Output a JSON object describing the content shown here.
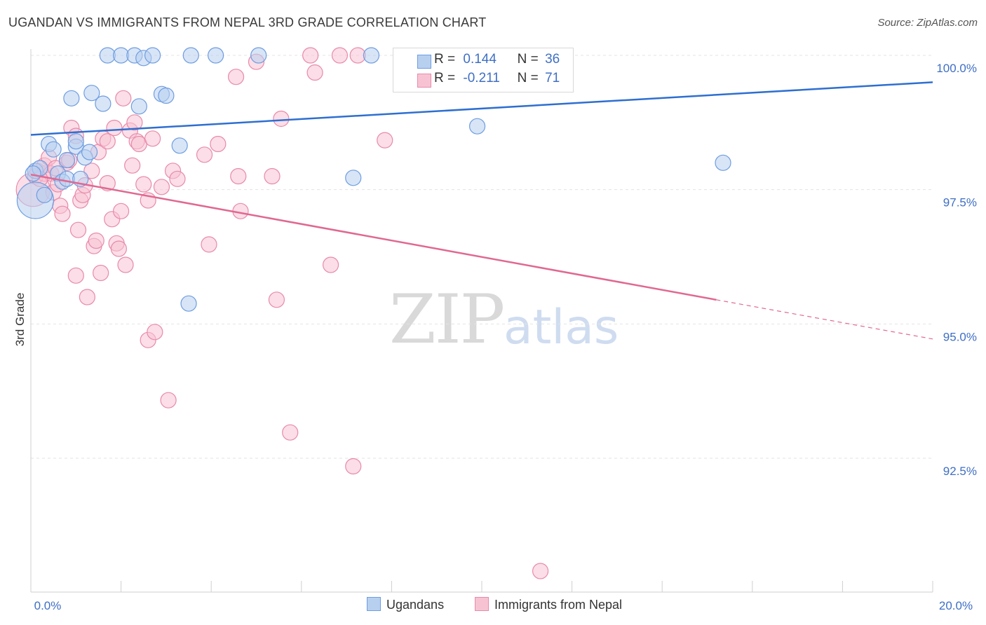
{
  "header": {
    "title": "UGANDAN VS IMMIGRANTS FROM NEPAL 3RD GRADE CORRELATION CHART",
    "source": "Source: ZipAtlas.com"
  },
  "watermark": {
    "zip": "ZIP",
    "atlas": "atlas"
  },
  "legend_box": {
    "rows": [
      {
        "r_label": "R =",
        "r_value": "0.144",
        "n_label": "N =",
        "n_value": "36"
      },
      {
        "r_label": "R =",
        "r_value": "-0.211",
        "n_label": "N =",
        "n_value": "71"
      }
    ]
  },
  "bottom_legend": {
    "series1": "Ugandans",
    "series2": "Immigrants from Nepal"
  },
  "colors": {
    "blue_fill": "#b8d0f0",
    "blue_stroke": "#6e9de0",
    "blue_line": "#2e6fd0",
    "pink_fill": "#f7c3d3",
    "pink_stroke": "#e88aaa",
    "pink_line": "#e06892",
    "grid": "#e3e3e3",
    "axis_text": "#3f6fc4"
  },
  "chart_data": {
    "type": "scatter",
    "title": "UGANDAN VS IMMIGRANTS FROM NEPAL 3RD GRADE CORRELATION CHART",
    "xlabel": "",
    "ylabel": "3rd Grade",
    "xlim": [
      0,
      20
    ],
    "ylim": [
      90.0,
      100.2
    ],
    "x_tick_labels": [
      "0.0%",
      "20.0%"
    ],
    "y_ticks": [
      100.0,
      97.5,
      95.0,
      92.5
    ],
    "y_tick_labels": [
      "100.0%",
      "97.5%",
      "95.0%",
      "92.5%"
    ],
    "grid": true,
    "legend_position": "top-center",
    "series": [
      {
        "name": "Ugandans",
        "r": 0.144,
        "n": 36,
        "trend": {
          "x": [
            0,
            20
          ],
          "y": [
            98.52,
            99.5
          ]
        },
        "points": [
          {
            "x": 0.1,
            "y": 97.3,
            "s": 26
          },
          {
            "x": 0.1,
            "y": 97.85,
            "s": 11
          },
          {
            "x": 0.2,
            "y": 97.9,
            "s": 11
          },
          {
            "x": 0.3,
            "y": 97.4,
            "s": 11
          },
          {
            "x": 0.4,
            "y": 98.35,
            "s": 11
          },
          {
            "x": 0.5,
            "y": 98.25,
            "s": 11
          },
          {
            "x": 0.6,
            "y": 97.8,
            "s": 11
          },
          {
            "x": 0.7,
            "y": 97.65,
            "s": 11
          },
          {
            "x": 0.8,
            "y": 97.7,
            "s": 11
          },
          {
            "x": 0.8,
            "y": 98.05,
            "s": 11
          },
          {
            "x": 0.9,
            "y": 99.2,
            "s": 11
          },
          {
            "x": 1.0,
            "y": 98.3,
            "s": 11
          },
          {
            "x": 1.0,
            "y": 98.4,
            "s": 11
          },
          {
            "x": 1.1,
            "y": 97.7,
            "s": 11
          },
          {
            "x": 1.2,
            "y": 98.1,
            "s": 11
          },
          {
            "x": 1.3,
            "y": 98.2,
            "s": 11
          },
          {
            "x": 1.35,
            "y": 99.3,
            "s": 11
          },
          {
            "x": 1.6,
            "y": 99.1,
            "s": 11
          },
          {
            "x": 1.7,
            "y": 100.0,
            "s": 11
          },
          {
            "x": 2.0,
            "y": 100.0,
            "s": 11
          },
          {
            "x": 2.4,
            "y": 99.05,
            "s": 11
          },
          {
            "x": 2.3,
            "y": 100.0,
            "s": 11
          },
          {
            "x": 2.5,
            "y": 99.95,
            "s": 11
          },
          {
            "x": 2.7,
            "y": 100.0,
            "s": 11
          },
          {
            "x": 2.9,
            "y": 99.28,
            "s": 11
          },
          {
            "x": 3.0,
            "y": 99.25,
            "s": 11
          },
          {
            "x": 3.3,
            "y": 98.32,
            "s": 11
          },
          {
            "x": 3.5,
            "y": 95.38,
            "s": 11
          },
          {
            "x": 3.55,
            "y": 100.0,
            "s": 11
          },
          {
            "x": 4.1,
            "y": 100.0,
            "s": 11
          },
          {
            "x": 5.05,
            "y": 100.0,
            "s": 11
          },
          {
            "x": 7.15,
            "y": 97.72,
            "s": 11
          },
          {
            "x": 7.55,
            "y": 100.0,
            "s": 11
          },
          {
            "x": 9.9,
            "y": 98.68,
            "s": 11
          },
          {
            "x": 15.35,
            "y": 98.0,
            "s": 11
          },
          {
            "x": 0.05,
            "y": 97.8,
            "s": 11
          }
        ]
      },
      {
        "name": "Immigrants from Nepal",
        "r": -0.211,
        "n": 71,
        "trend": {
          "x": [
            0,
            15.2
          ],
          "y": [
            97.78,
            95.45
          ]
        },
        "trend_dashed": {
          "x": [
            15.2,
            20
          ],
          "y": [
            95.45,
            94.72
          ]
        },
        "points": [
          {
            "x": 0.05,
            "y": 97.5,
            "s": 24
          },
          {
            "x": 0.1,
            "y": 97.75,
            "s": 11
          },
          {
            "x": 0.15,
            "y": 97.85,
            "s": 11
          },
          {
            "x": 0.3,
            "y": 97.8,
            "s": 11
          },
          {
            "x": 0.3,
            "y": 97.95,
            "s": 11
          },
          {
            "x": 0.4,
            "y": 98.1,
            "s": 11
          },
          {
            "x": 0.45,
            "y": 97.8,
            "s": 11
          },
          {
            "x": 0.5,
            "y": 97.45,
            "s": 11
          },
          {
            "x": 0.6,
            "y": 97.6,
            "s": 11
          },
          {
            "x": 0.65,
            "y": 97.2,
            "s": 11
          },
          {
            "x": 0.7,
            "y": 97.05,
            "s": 11
          },
          {
            "x": 0.8,
            "y": 98.0,
            "s": 11
          },
          {
            "x": 0.85,
            "y": 98.05,
            "s": 11
          },
          {
            "x": 0.9,
            "y": 98.65,
            "s": 11
          },
          {
            "x": 1.0,
            "y": 98.5,
            "s": 11
          },
          {
            "x": 1.0,
            "y": 95.9,
            "s": 11
          },
          {
            "x": 1.05,
            "y": 96.75,
            "s": 11
          },
          {
            "x": 1.1,
            "y": 97.3,
            "s": 11
          },
          {
            "x": 1.15,
            "y": 97.4,
            "s": 11
          },
          {
            "x": 1.2,
            "y": 97.58,
            "s": 11
          },
          {
            "x": 1.25,
            "y": 95.5,
            "s": 11
          },
          {
            "x": 1.35,
            "y": 97.85,
            "s": 11
          },
          {
            "x": 1.4,
            "y": 96.45,
            "s": 11
          },
          {
            "x": 1.45,
            "y": 96.55,
            "s": 11
          },
          {
            "x": 1.5,
            "y": 98.2,
            "s": 11
          },
          {
            "x": 1.55,
            "y": 95.95,
            "s": 11
          },
          {
            "x": 1.6,
            "y": 98.45,
            "s": 11
          },
          {
            "x": 1.7,
            "y": 98.4,
            "s": 11
          },
          {
            "x": 1.7,
            "y": 97.62,
            "s": 11
          },
          {
            "x": 1.8,
            "y": 96.95,
            "s": 11
          },
          {
            "x": 1.85,
            "y": 98.65,
            "s": 11
          },
          {
            "x": 1.9,
            "y": 96.5,
            "s": 11
          },
          {
            "x": 1.95,
            "y": 96.4,
            "s": 11
          },
          {
            "x": 2.0,
            "y": 97.1,
            "s": 11
          },
          {
            "x": 2.05,
            "y": 99.2,
            "s": 11
          },
          {
            "x": 2.1,
            "y": 96.1,
            "s": 11
          },
          {
            "x": 2.2,
            "y": 98.6,
            "s": 11
          },
          {
            "x": 2.25,
            "y": 97.95,
            "s": 11
          },
          {
            "x": 2.3,
            "y": 98.75,
            "s": 11
          },
          {
            "x": 2.35,
            "y": 98.4,
            "s": 11
          },
          {
            "x": 2.4,
            "y": 98.35,
            "s": 11
          },
          {
            "x": 2.5,
            "y": 97.6,
            "s": 11
          },
          {
            "x": 2.6,
            "y": 97.3,
            "s": 11
          },
          {
            "x": 2.6,
            "y": 94.7,
            "s": 11
          },
          {
            "x": 2.7,
            "y": 98.45,
            "s": 11
          },
          {
            "x": 2.75,
            "y": 94.85,
            "s": 11
          },
          {
            "x": 2.9,
            "y": 97.55,
            "s": 11
          },
          {
            "x": 3.05,
            "y": 93.58,
            "s": 11
          },
          {
            "x": 3.15,
            "y": 97.85,
            "s": 11
          },
          {
            "x": 3.25,
            "y": 97.7,
            "s": 11
          },
          {
            "x": 3.85,
            "y": 98.15,
            "s": 11
          },
          {
            "x": 3.95,
            "y": 96.48,
            "s": 11
          },
          {
            "x": 4.15,
            "y": 98.35,
            "s": 11
          },
          {
            "x": 4.55,
            "y": 99.6,
            "s": 11
          },
          {
            "x": 4.6,
            "y": 97.75,
            "s": 11
          },
          {
            "x": 4.65,
            "y": 97.1,
            "s": 11
          },
          {
            "x": 5.0,
            "y": 99.88,
            "s": 11
          },
          {
            "x": 5.35,
            "y": 97.75,
            "s": 11
          },
          {
            "x": 5.45,
            "y": 95.45,
            "s": 11
          },
          {
            "x": 5.55,
            "y": 98.82,
            "s": 11
          },
          {
            "x": 5.75,
            "y": 92.98,
            "s": 11
          },
          {
            "x": 6.2,
            "y": 100.0,
            "s": 11
          },
          {
            "x": 6.3,
            "y": 99.68,
            "s": 11
          },
          {
            "x": 6.65,
            "y": 96.1,
            "s": 11
          },
          {
            "x": 6.85,
            "y": 100.0,
            "s": 11
          },
          {
            "x": 7.15,
            "y": 92.35,
            "s": 11
          },
          {
            "x": 7.25,
            "y": 100.0,
            "s": 11
          },
          {
            "x": 7.85,
            "y": 98.42,
            "s": 11
          },
          {
            "x": 11.3,
            "y": 90.4,
            "s": 11
          },
          {
            "x": 0.2,
            "y": 97.7,
            "s": 11
          },
          {
            "x": 0.55,
            "y": 97.9,
            "s": 11
          }
        ]
      }
    ]
  }
}
